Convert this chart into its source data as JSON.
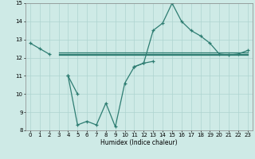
{
  "xlabel": "Humidex (Indice chaleur)",
  "x_values": [
    0,
    1,
    2,
    3,
    4,
    5,
    6,
    7,
    8,
    9,
    10,
    11,
    12,
    13,
    14,
    15,
    16,
    17,
    18,
    19,
    20,
    21,
    22,
    23
  ],
  "line1_y": [
    12.8,
    12.5,
    12.2,
    null,
    11.0,
    10.0,
    null,
    null,
    null,
    null,
    null,
    11.5,
    11.7,
    13.5,
    13.9,
    15.0,
    14.0,
    13.5,
    13.2,
    12.8,
    12.2,
    12.15,
    12.2,
    12.4
  ],
  "line2_y": [
    null,
    null,
    null,
    null,
    11.0,
    8.3,
    8.5,
    8.3,
    9.5,
    8.2,
    10.6,
    11.5,
    11.7,
    11.8,
    null,
    null,
    null,
    null,
    null,
    null,
    null,
    null,
    null,
    null
  ],
  "hline_y": 12.25,
  "hline_x_start": 3,
  "hline_x_end": 23,
  "hlines": [
    12.3,
    12.22,
    12.14
  ],
  "ylim": [
    8,
    15
  ],
  "xlim": [
    -0.5,
    23.5
  ],
  "yticks": [
    8,
    9,
    10,
    11,
    12,
    13,
    14,
    15
  ],
  "xticks": [
    0,
    1,
    2,
    3,
    4,
    5,
    6,
    7,
    8,
    9,
    10,
    11,
    12,
    13,
    14,
    15,
    16,
    17,
    18,
    19,
    20,
    21,
    22,
    23
  ],
  "line_color": "#2e7d72",
  "bg_color": "#ceeae6",
  "grid_color": "#aed4d0"
}
